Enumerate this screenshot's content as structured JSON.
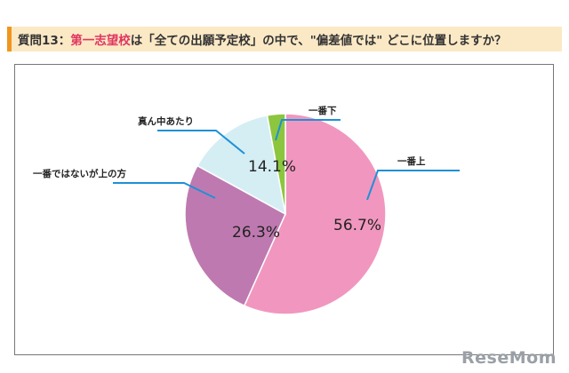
{
  "header": {
    "q_label": "質問13：",
    "q_accent": "第一志望校",
    "q_text": "は「全ての出願予定校」の中で、\"偏差値では\" どこに位置しますか？"
  },
  "chart_data": {
    "type": "pie",
    "title": "",
    "slices": [
      {
        "label": "一番上",
        "value": 56.7,
        "value_label": "56.7%",
        "color": "#f197bf"
      },
      {
        "label": "一番ではないが上の方",
        "value": 26.3,
        "value_label": "26.3%",
        "color": "#be7ab0"
      },
      {
        "label": "真ん中あたり",
        "value": 14.1,
        "value_label": "14.1%",
        "color": "#d4eef4"
      },
      {
        "label": "一番下",
        "value": 2.9,
        "value_label": "",
        "color": "#8cc63f"
      }
    ],
    "leader_color": "#1e90d6"
  },
  "branding": {
    "logo_text": "ReseMom"
  }
}
